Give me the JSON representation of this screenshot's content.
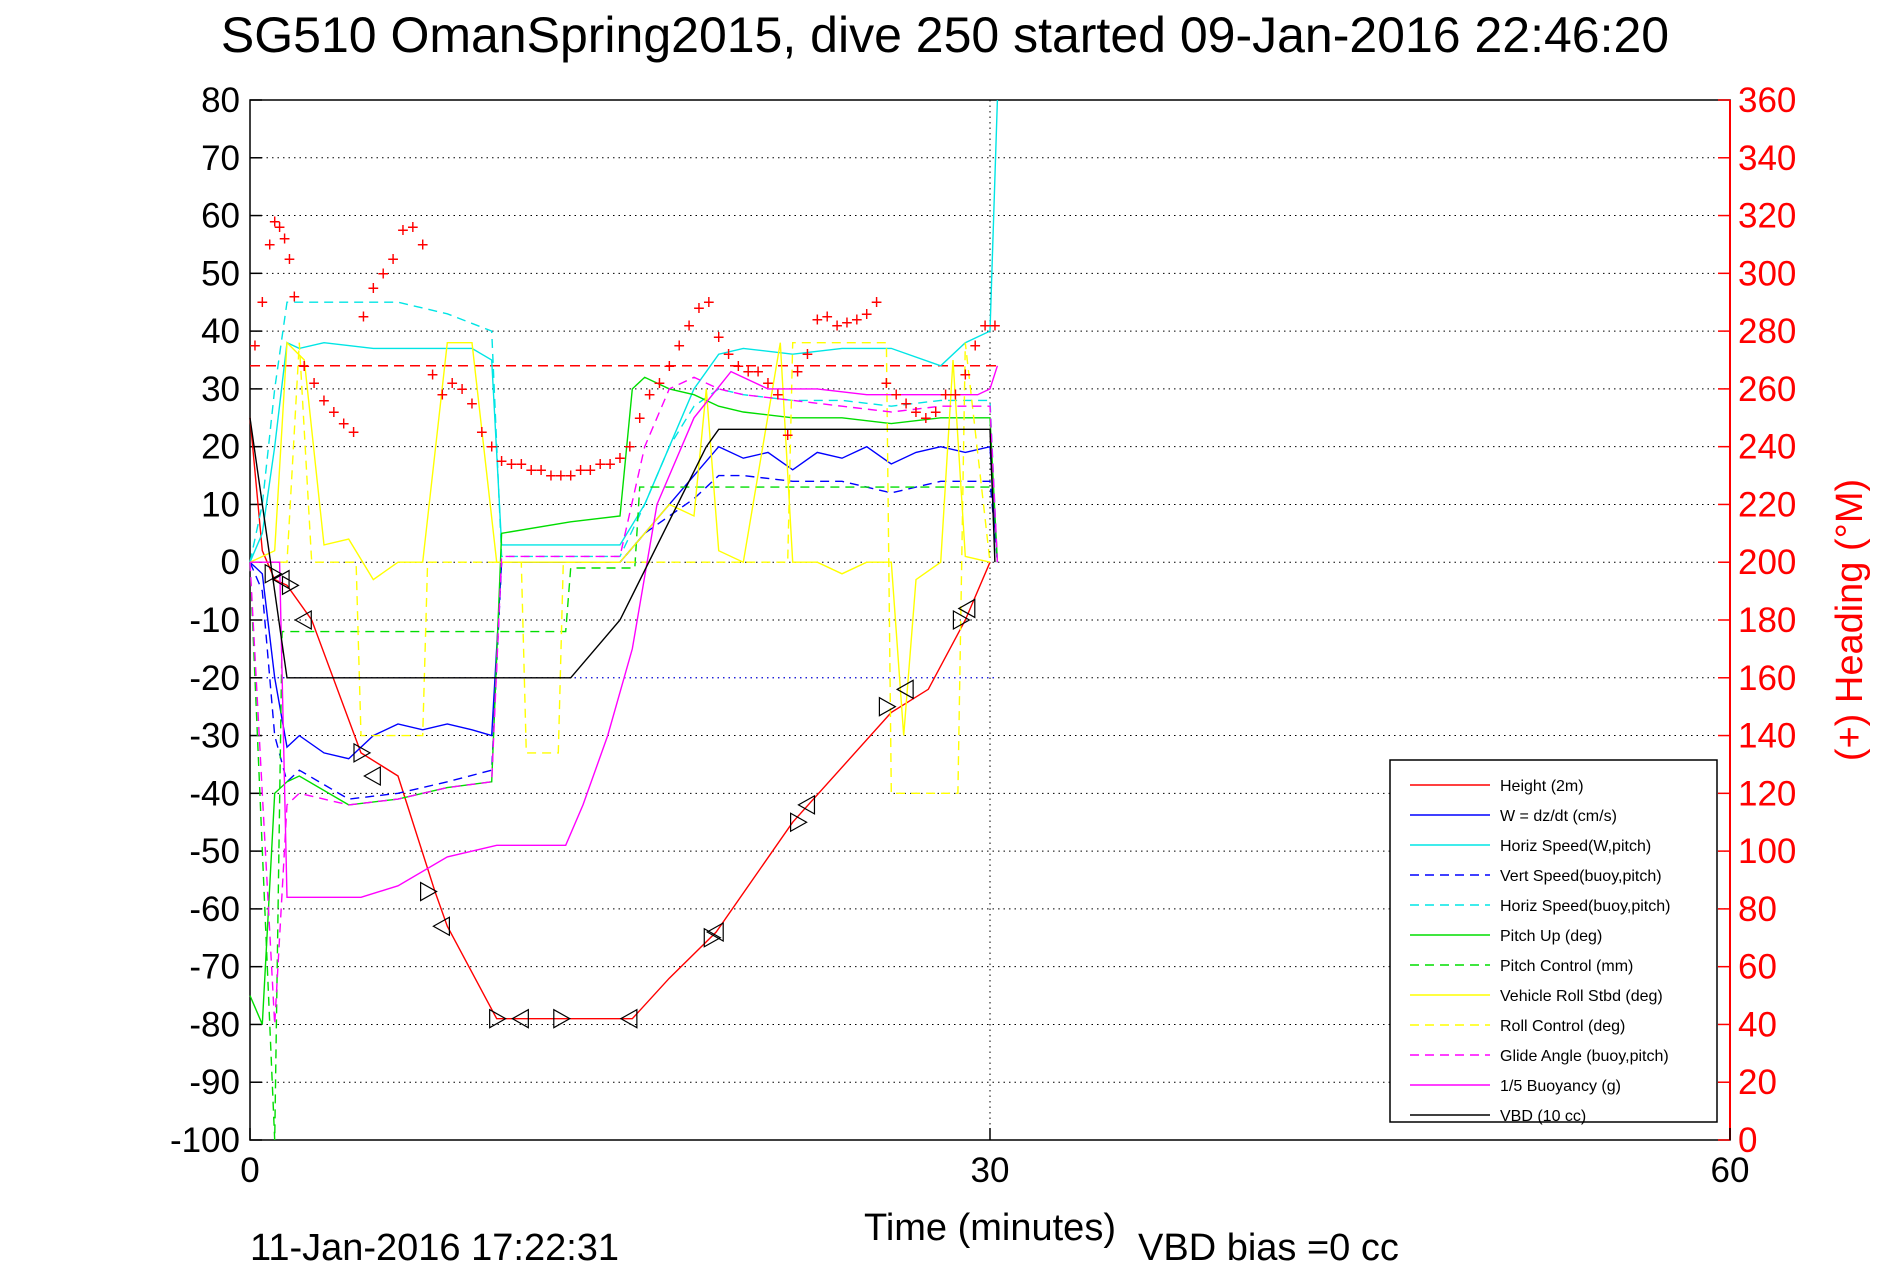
{
  "chart_data": {
    "type": "line",
    "title": "SG510 OmanSpring2015, dive 250 started 09-Jan-2016 22:46:20",
    "xlabel": "Time (minutes)",
    "ylabel_right": "(+) Heading (°M)",
    "xlim": [
      0,
      60
    ],
    "ylim": [
      -100,
      80
    ],
    "ylim_right": [
      0,
      360
    ],
    "xticks": [
      0,
      30,
      60
    ],
    "yticks": [
      80,
      70,
      60,
      50,
      40,
      30,
      20,
      10,
      0,
      -10,
      -20,
      -30,
      -40,
      -50,
      -60,
      -70,
      -80,
      -90,
      -100
    ],
    "yticks_right": [
      360,
      340,
      320,
      300,
      280,
      260,
      240,
      220,
      200,
      180,
      160,
      140,
      120,
      100,
      80,
      60,
      40,
      20,
      0
    ],
    "grid": true,
    "legend_position": "bottom-right",
    "footer_left": "11-Jan-2016 17:22:31",
    "footer_right": "VBD bias =0 cc",
    "colors": {
      "red": "#ff0000",
      "blue": "#0000ff",
      "cyan": "#00e5e5",
      "green": "#00dd00",
      "yellow": "#ffff00",
      "magenta": "#ff00ff",
      "black": "#000000"
    },
    "series": [
      {
        "name": "Height (2m)",
        "color": "#ff0000",
        "dash": false,
        "x": [
          0,
          0.5,
          1,
          1.5,
          2.5,
          4.5,
          6,
          7.5,
          8,
          10,
          11,
          12.5,
          15.5,
          17,
          18.9,
          22,
          26,
          27.5,
          29,
          30
        ],
        "y": [
          25,
          2,
          -3,
          -4,
          -10,
          -33,
          -37,
          -57,
          -63,
          -79,
          -79,
          -79,
          -79,
          -72,
          -64,
          -45,
          -26,
          -22,
          -10,
          0
        ]
      },
      {
        "name": "W = dz/dt (cm/s)",
        "color": "#0000ff",
        "dash": false,
        "x": [
          0,
          0.5,
          1,
          1.5,
          2,
          3,
          4,
          5,
          6,
          7,
          8,
          9,
          9.8,
          10.2,
          12,
          15,
          16,
          17,
          18,
          19,
          20,
          21,
          22,
          23,
          24,
          25,
          26,
          27,
          28,
          29,
          30,
          30.3
        ],
        "y": [
          0,
          -2,
          -20,
          -32,
          -30,
          -33,
          -34,
          -30,
          -28,
          -29,
          -28,
          -29,
          -30,
          0,
          0,
          0,
          5,
          10,
          15,
          20,
          18,
          19,
          16,
          19,
          18,
          20,
          17,
          19,
          20,
          19,
          20,
          0
        ]
      },
      {
        "name": "Horiz Speed(W,pitch)",
        "color": "#00e5e5",
        "dash": false,
        "x": [
          0,
          0.5,
          1,
          1.5,
          2,
          3,
          5,
          7,
          9,
          9.8,
          10.2,
          12,
          15,
          16,
          17,
          18,
          19,
          20,
          22,
          24,
          26,
          28,
          29,
          30,
          30.3
        ],
        "y": [
          0,
          5,
          20,
          38,
          37,
          38,
          37,
          37,
          37,
          35,
          3,
          3,
          3,
          10,
          20,
          30,
          36,
          37,
          36,
          37,
          37,
          34,
          38,
          40,
          80
        ]
      },
      {
        "name": "Vert Speed(buoy,pitch)",
        "color": "#0000ff",
        "dash": true,
        "x": [
          0,
          0.5,
          1,
          1.5,
          2,
          4,
          6,
          8,
          9.8,
          10.2,
          12,
          15,
          16,
          17,
          18,
          19,
          20,
          22,
          24,
          26,
          28,
          30,
          30.3
        ],
        "y": [
          0,
          -5,
          -30,
          -38,
          -36,
          -41,
          -40,
          -38,
          -36,
          0,
          0,
          0,
          5,
          8,
          11,
          15,
          15,
          14,
          14,
          12,
          14,
          14,
          0
        ]
      },
      {
        "name": "Horiz Speed(buoy,pitch)",
        "color": "#00e5e5",
        "dash": true,
        "x": [
          0,
          0.5,
          1,
          1.5,
          2,
          4,
          6,
          8,
          9.8,
          10.2,
          12,
          15,
          16,
          17,
          18,
          19,
          20,
          22,
          24,
          26,
          28,
          30,
          30.3
        ],
        "y": [
          0,
          10,
          30,
          45,
          45,
          45,
          45,
          43,
          40,
          1,
          1,
          1,
          10,
          20,
          27,
          30,
          29,
          28,
          28,
          27,
          28,
          28,
          0
        ]
      },
      {
        "name": "Pitch Up (deg)",
        "color": "#00dd00",
        "dash": false,
        "x": [
          0,
          0.5,
          1,
          1.5,
          2,
          4,
          6,
          8,
          9.8,
          10.2,
          13,
          15,
          15.5,
          16,
          17,
          18,
          19,
          20,
          22,
          24,
          26,
          28,
          30,
          30.3
        ],
        "y": [
          -75,
          -80,
          -40,
          -38,
          -37,
          -42,
          -41,
          -39,
          -38,
          5,
          7,
          8,
          30,
          32,
          30,
          29,
          27,
          26,
          25,
          25,
          24,
          25,
          25,
          0
        ]
      },
      {
        "name": "Pitch Control (mm)",
        "color": "#00dd00",
        "dash": true,
        "x": [
          0,
          1,
          1.3,
          1.5,
          12.8,
          13,
          15.6,
          15.8,
          30
        ],
        "y": [
          0,
          -100,
          -12,
          -12,
          -12,
          -1,
          -1,
          13,
          13
        ]
      },
      {
        "name": "Vehicle Roll Stbd (deg)",
        "color": "#ffff00",
        "dash": false,
        "x": [
          0,
          1,
          1.5,
          2.2,
          3,
          4,
          5,
          6,
          7,
          8,
          9,
          10,
          12,
          13,
          15,
          16,
          17,
          18,
          18.5,
          19,
          20,
          21.5,
          22,
          23,
          24,
          25,
          26,
          26.5,
          27,
          28,
          28.5,
          29,
          30
        ],
        "y": [
          0,
          2,
          38,
          35,
          3,
          4,
          -3,
          0,
          0,
          38,
          38,
          0,
          0,
          0,
          0,
          5,
          10,
          8,
          30,
          2,
          0,
          38,
          0,
          0,
          -2,
          0,
          0,
          -30,
          -3,
          0,
          35,
          1,
          0
        ]
      },
      {
        "name": "Roll Control (deg)",
        "color": "#ffff00",
        "dash": true,
        "x": [
          0,
          1.5,
          2,
          2.5,
          4.3,
          4.5,
          7,
          7.2,
          8,
          8.2,
          11,
          11.2,
          12.5,
          12.7,
          18.5,
          21.8,
          22,
          25.8,
          26,
          26.5,
          28.7,
          29,
          30
        ],
        "y": [
          0,
          0,
          38,
          0,
          0,
          -30,
          -30,
          0,
          0,
          0,
          0,
          -33,
          -33,
          0,
          0,
          0,
          38,
          38,
          -40,
          -40,
          -40,
          38,
          0
        ]
      },
      {
        "name": "Glide Angle (buoy,pitch)",
        "color": "#ff00ff",
        "dash": true,
        "x": [
          0,
          0.5,
          1,
          1.5,
          2,
          4,
          6,
          8,
          9.8,
          10.2,
          12,
          15,
          16,
          17,
          18,
          19,
          20,
          22,
          24,
          26,
          28,
          30,
          30.3
        ],
        "y": [
          0,
          -40,
          -80,
          -42,
          -40,
          -42,
          -41,
          -39,
          -38,
          1,
          1,
          1,
          20,
          30,
          32,
          30,
          29,
          28,
          27,
          26,
          27,
          27,
          0
        ]
      },
      {
        "name": "1/5 Buoyancy (g)",
        "color": "#ff00ff",
        "dash": false,
        "x": [
          0,
          1.2,
          1.5,
          4.5,
          6,
          8,
          10,
          12.8,
          13.5,
          14.5,
          15.5,
          16.5,
          18,
          19.5,
          21,
          23,
          25,
          27,
          29.5,
          30,
          30.3
        ],
        "y": [
          0,
          0,
          -58,
          -58,
          -56,
          -51,
          -49,
          -49,
          -42,
          -30,
          -15,
          10,
          25,
          33,
          30,
          30,
          29,
          29,
          29,
          30,
          34
        ]
      },
      {
        "name": "VBD (10 cc)",
        "color": "#000000",
        "dash": false,
        "x": [
          0,
          1.5,
          12.8,
          13,
          15,
          18.5,
          19,
          30,
          30.2
        ],
        "y": [
          25,
          -20,
          -20,
          -20,
          -10,
          20,
          23,
          23,
          0
        ]
      }
    ],
    "heading_series": {
      "name": "(+) Heading",
      "color": "#ff0000",
      "marker": "+",
      "x": [
        0.2,
        0.5,
        0.8,
        1.0,
        1.2,
        1.4,
        1.6,
        1.8,
        2.2,
        2.6,
        3,
        3.4,
        3.8,
        4.2,
        4.6,
        5,
        5.4,
        5.8,
        6.2,
        6.6,
        7,
        7.4,
        7.8,
        8.2,
        8.6,
        9,
        9.4,
        9.8,
        10.2,
        10.6,
        11,
        11.4,
        11.8,
        12.2,
        12.6,
        13,
        13.4,
        13.8,
        14.2,
        14.6,
        15,
        15.4,
        15.8,
        16.2,
        16.6,
        17,
        17.4,
        17.8,
        18.2,
        18.6,
        19,
        19.4,
        19.8,
        20.2,
        20.6,
        21,
        21.4,
        21.8,
        22.2,
        22.6,
        23,
        23.4,
        23.8,
        24.2,
        24.6,
        25,
        25.4,
        25.8,
        26.2,
        26.6,
        27,
        27.4,
        27.8,
        28.2,
        28.6,
        29,
        29.4,
        29.8,
        30.2
      ],
      "y": [
        275,
        290,
        310,
        318,
        316,
        312,
        305,
        292,
        268,
        262,
        256,
        252,
        248,
        245,
        285,
        295,
        300,
        305,
        315,
        316,
        310,
        265,
        258,
        262,
        260,
        255,
        245,
        240,
        235,
        234,
        234,
        232,
        232,
        230,
        230,
        230,
        232,
        232,
        234,
        234,
        236,
        240,
        250,
        258,
        262,
        268,
        275,
        282,
        288,
        290,
        278,
        272,
        268,
        266,
        266,
        262,
        258,
        244,
        266,
        272,
        284,
        285,
        282,
        283,
        284,
        286,
        290,
        262,
        258,
        255,
        252,
        250,
        252,
        258,
        258,
        265,
        275,
        282,
        282
      ]
    },
    "profile_markers": {
      "x": [
        0.9,
        1.3,
        1.6,
        2.2,
        4.5,
        5.0,
        7.2,
        7.8,
        10.0,
        11.0,
        12.6,
        15.4,
        18.7,
        18.9,
        22.2,
        22.6,
        25.8,
        26.6,
        28.8,
        29.1
      ],
      "y": [
        -2,
        -3,
        -4,
        -10,
        -33,
        -37,
        -57,
        -63,
        -79,
        -79,
        -79,
        -79,
        -65,
        -64,
        -45,
        -42,
        -25,
        -22,
        -10,
        -8
      ]
    }
  }
}
